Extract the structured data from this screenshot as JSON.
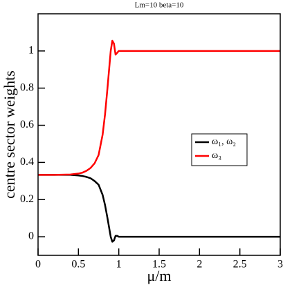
{
  "chart_data": {
    "type": "line",
    "title": "Lm=10 beta=10",
    "x_label": "μ/m",
    "y_label": "centre sector weights",
    "x": [
      0,
      0.2,
      0.4,
      0.5,
      0.55,
      0.6,
      0.65,
      0.7,
      0.75,
      0.8,
      0.83,
      0.86,
      0.88,
      0.9,
      0.92,
      0.94,
      0.96,
      0.98,
      1.0,
      1.05,
      1.5,
      2,
      2.5,
      3
    ],
    "series": [
      {
        "name": "ω₁, ω₂",
        "color": "#000000",
        "values": [
          0.333,
          0.333,
          0.333,
          0.33,
          0.327,
          0.322,
          0.315,
          0.3,
          0.28,
          0.225,
          0.17,
          0.1,
          0.05,
          0.0,
          -0.027,
          -0.02,
          0.005,
          0.005,
          0,
          0,
          0,
          0,
          0,
          0
        ]
      },
      {
        "name": "ω₃",
        "color": "#ff0000",
        "values": [
          0.333,
          0.333,
          0.335,
          0.34,
          0.345,
          0.355,
          0.37,
          0.395,
          0.44,
          0.55,
          0.66,
          0.8,
          0.9,
          1.0,
          1.055,
          1.04,
          0.98,
          0.99,
          1.0,
          1.0,
          1,
          1,
          1,
          1
        ]
      }
    ],
    "xlim": [
      0,
      3
    ],
    "xticks": [
      0,
      0.5,
      1,
      1.5,
      2,
      2.5,
      3
    ],
    "ylim": [
      -0.1,
      1.2
    ],
    "yticks": [
      0,
      0.2,
      0.4,
      0.6,
      0.8,
      1
    ],
    "legend": "right"
  }
}
